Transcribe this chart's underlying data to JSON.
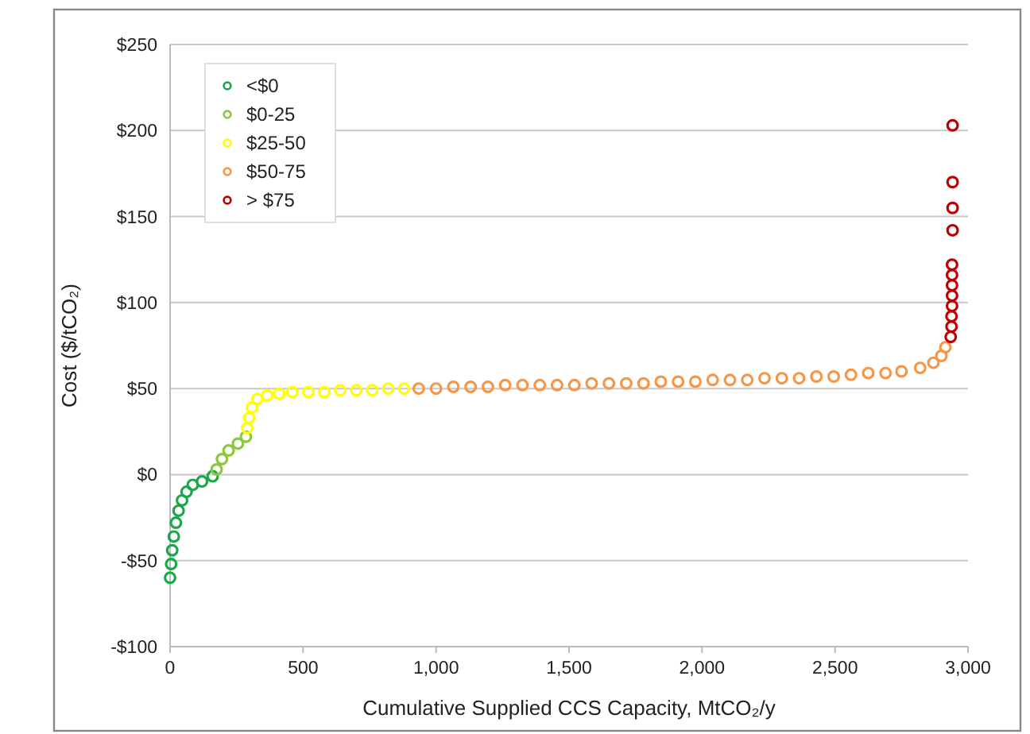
{
  "chart_data": {
    "type": "scatter",
    "xlabel": "Cumulative Supplied CCS Capacity, MtCO₂/y",
    "ylabel": "Cost ($/tCO₂)",
    "xlim": [
      0,
      3000
    ],
    "xticks": [
      0,
      500,
      {
        "value": 1000,
        "label": "1,000"
      },
      {
        "value": 1500,
        "label": "1,500"
      },
      {
        "value": 2000,
        "label": "2,000"
      },
      {
        "value": 2500,
        "label": "2,500"
      },
      {
        "value": 3000,
        "label": "3,000"
      }
    ],
    "ylim": [
      -100,
      250
    ],
    "yticks": [
      {
        "value": -100,
        "label": "-$100"
      },
      {
        "value": -50,
        "label": "-$50"
      },
      {
        "value": 0,
        "label": "$0"
      },
      {
        "value": 50,
        "label": "$50"
      },
      {
        "value": 100,
        "label": "$100"
      },
      {
        "value": 150,
        "label": "$150"
      },
      {
        "value": 200,
        "label": "$200"
      },
      {
        "value": 250,
        "label": "$250"
      }
    ],
    "grid": "y",
    "legend": "top left",
    "marker": "circle",
    "series": [
      {
        "name": "<$0",
        "color": "#1aa84a",
        "x": [
          0,
          4,
          8,
          14,
          22,
          32,
          45,
          62,
          85,
          120,
          160
        ],
        "values": [
          -60,
          -52,
          -44,
          -36,
          -28,
          -21,
          -15,
          -10,
          -6,
          -4,
          -1
        ]
      },
      {
        "name": "$0-25",
        "color": "#8dc63f",
        "x": [
          175,
          195,
          220,
          255,
          285
        ],
        "values": [
          3,
          9,
          14,
          18,
          22
        ]
      },
      {
        "name": "$25-50",
        "color": "#ffff00",
        "x": [
          290,
          297,
          308,
          328,
          365,
          410,
          460,
          520,
          580,
          640,
          700,
          760,
          820,
          880
        ],
        "values": [
          27,
          33,
          39,
          44,
          46,
          47,
          48,
          48,
          48,
          49,
          49,
          49,
          50,
          50
        ]
      },
      {
        "name": "$50-75",
        "color": "#f79646",
        "x": [
          935,
          1000,
          1065,
          1130,
          1195,
          1260,
          1325,
          1390,
          1455,
          1520,
          1585,
          1650,
          1715,
          1780,
          1845,
          1910,
          1975,
          2040,
          2105,
          2170,
          2235,
          2300,
          2365,
          2430,
          2495,
          2560,
          2625,
          2690,
          2750,
          2820,
          2870,
          2900,
          2915
        ],
        "values": [
          50,
          50,
          51,
          51,
          51,
          52,
          52,
          52,
          52,
          52,
          53,
          53,
          53,
          53,
          54,
          54,
          54,
          55,
          55,
          55,
          56,
          56,
          56,
          57,
          57,
          58,
          59,
          59,
          60,
          62,
          65,
          69,
          74
        ]
      },
      {
        "name": "> $75",
        "color": "#c00000",
        "x": [
          2935,
          2938,
          2938,
          2940,
          2940,
          2940,
          2940,
          2940,
          2942,
          2942,
          2942,
          2942
        ],
        "values": [
          80,
          86,
          92,
          98,
          104,
          110,
          116,
          122,
          142,
          155,
          170,
          203
        ]
      }
    ]
  }
}
